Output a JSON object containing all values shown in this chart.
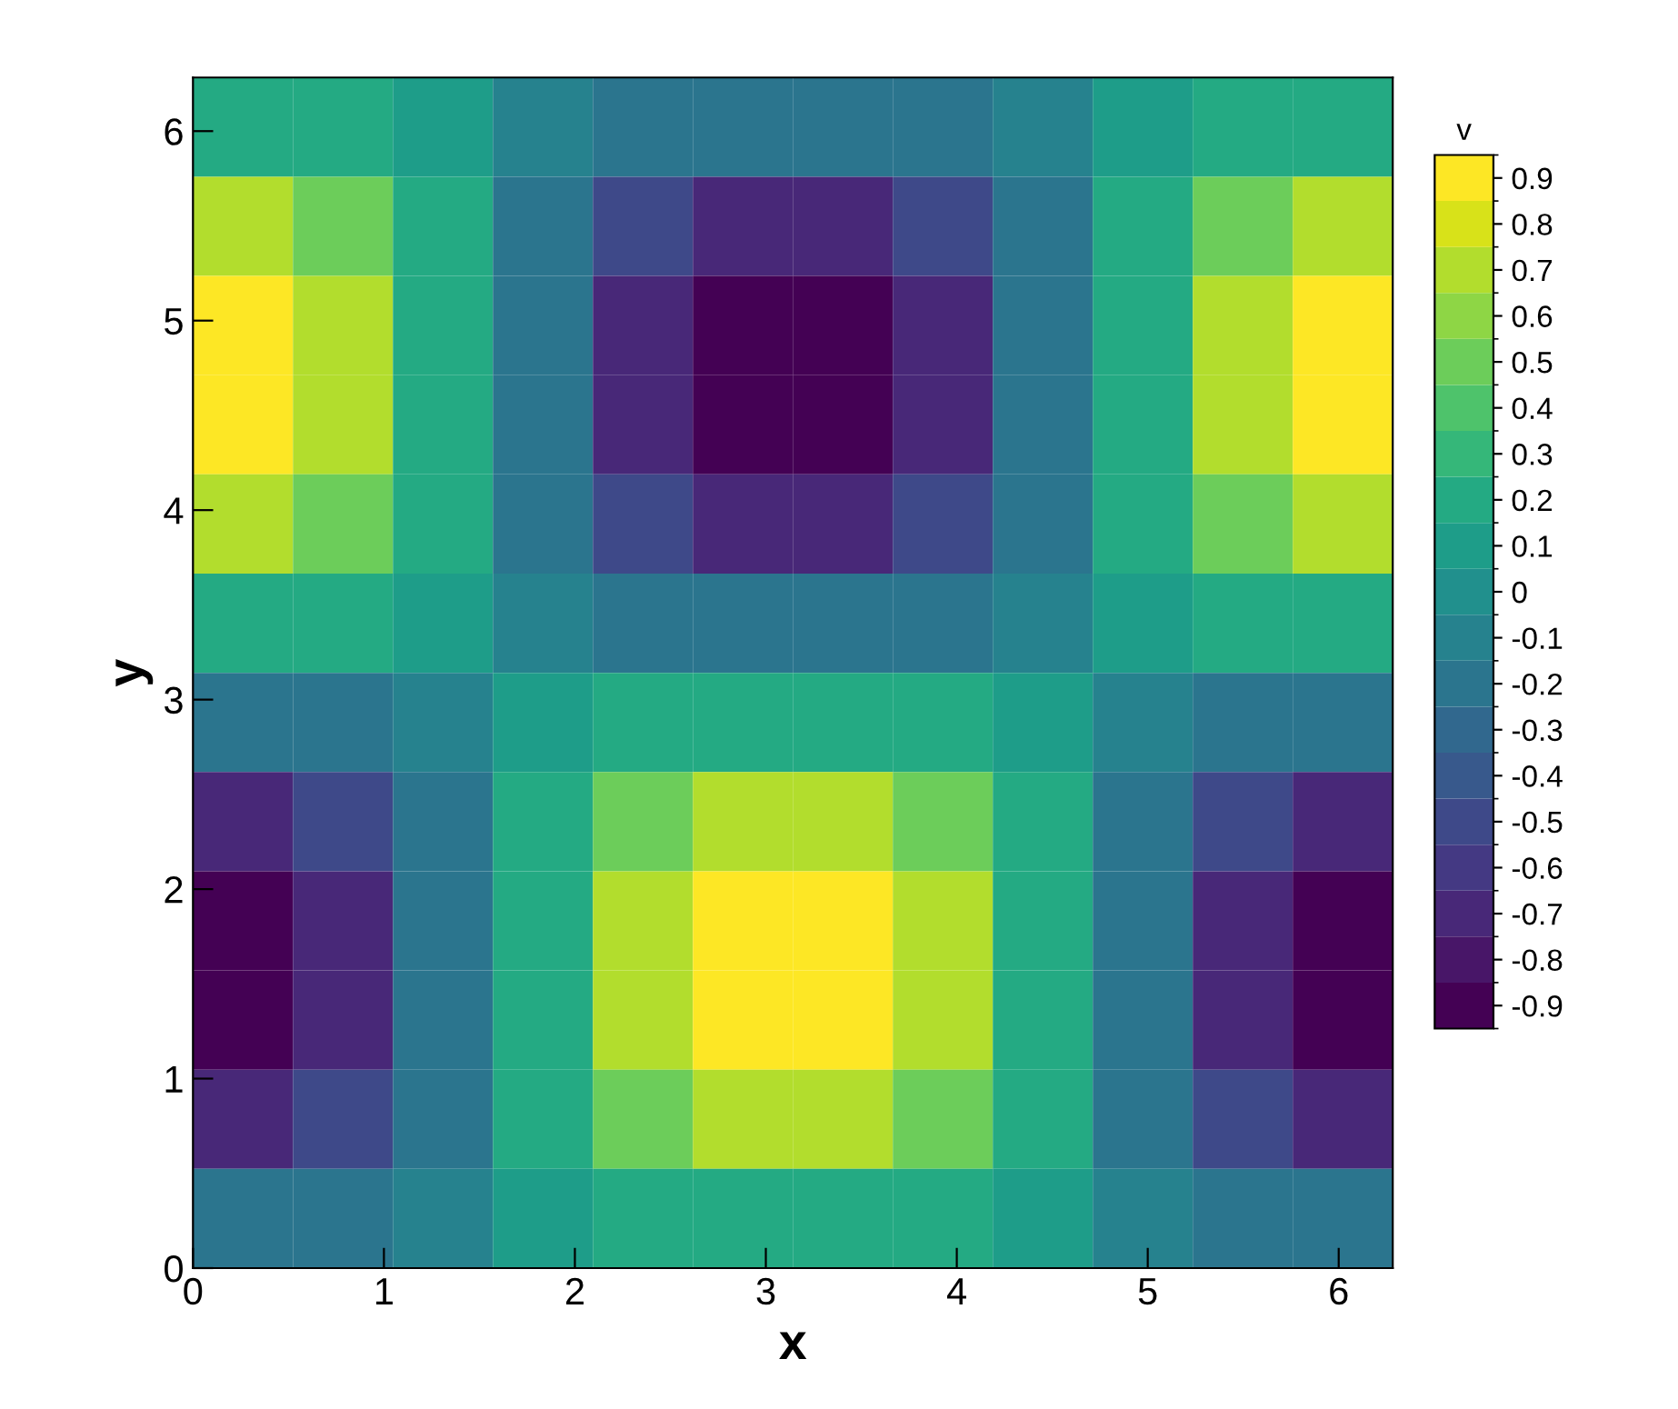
{
  "chart_data": {
    "type": "heatmap",
    "xlabel": "x",
    "ylabel": "y",
    "clabel": "v",
    "xlim": [
      0,
      6.283
    ],
    "ylim": [
      0,
      6.283
    ],
    "xticks": [
      0,
      1,
      2,
      3,
      4,
      5,
      6
    ],
    "yticks": [
      0,
      1,
      2,
      3,
      4,
      5,
      6
    ],
    "clim": [
      -0.95,
      0.95
    ],
    "cticks": [
      -0.9,
      -0.8,
      -0.7,
      -0.6,
      -0.5,
      -0.4,
      -0.3,
      -0.2,
      -0.1,
      0,
      0.1,
      0.2,
      0.3,
      0.4,
      0.5,
      0.6,
      0.7,
      0.8,
      0.9
    ],
    "cells": [
      [
        0.2,
        0.2,
        0.1,
        -0.1,
        -0.2,
        -0.2,
        -0.2,
        -0.2,
        -0.1,
        0.1,
        0.2,
        0.2
      ],
      [
        0.7,
        0.5,
        0.2,
        -0.2,
        -0.5,
        -0.7,
        -0.7,
        -0.5,
        -0.2,
        0.2,
        0.5,
        0.7
      ],
      [
        0.9,
        0.7,
        0.2,
        -0.2,
        -0.7,
        -0.9,
        -0.9,
        -0.7,
        -0.2,
        0.2,
        0.7,
        0.9
      ],
      [
        0.9,
        0.7,
        0.2,
        -0.2,
        -0.7,
        -0.9,
        -0.9,
        -0.7,
        -0.2,
        0.2,
        0.7,
        0.9
      ],
      [
        0.7,
        0.5,
        0.2,
        -0.2,
        -0.5,
        -0.7,
        -0.7,
        -0.5,
        -0.2,
        0.2,
        0.5,
        0.7
      ],
      [
        0.2,
        0.2,
        0.1,
        -0.1,
        -0.2,
        -0.2,
        -0.2,
        -0.2,
        -0.1,
        0.1,
        0.2,
        0.2
      ],
      [
        -0.2,
        -0.2,
        -0.1,
        0.1,
        0.2,
        0.2,
        0.2,
        0.2,
        0.1,
        -0.1,
        -0.2,
        -0.2
      ],
      [
        -0.7,
        -0.5,
        -0.2,
        0.2,
        0.5,
        0.7,
        0.7,
        0.5,
        0.2,
        -0.2,
        -0.5,
        -0.7
      ],
      [
        -0.9,
        -0.7,
        -0.2,
        0.2,
        0.7,
        0.9,
        0.9,
        0.7,
        0.2,
        -0.2,
        -0.7,
        -0.9
      ],
      [
        -0.9,
        -0.7,
        -0.2,
        0.2,
        0.7,
        0.9,
        0.9,
        0.7,
        0.2,
        -0.2,
        -0.7,
        -0.9
      ],
      [
        -0.7,
        -0.5,
        -0.2,
        0.2,
        0.5,
        0.7,
        0.7,
        0.5,
        0.2,
        -0.2,
        -0.5,
        -0.7
      ],
      [
        -0.2,
        -0.2,
        -0.1,
        0.1,
        0.2,
        0.2,
        0.2,
        0.2,
        0.1,
        -0.1,
        -0.2,
        -0.2
      ]
    ],
    "grid": false
  }
}
